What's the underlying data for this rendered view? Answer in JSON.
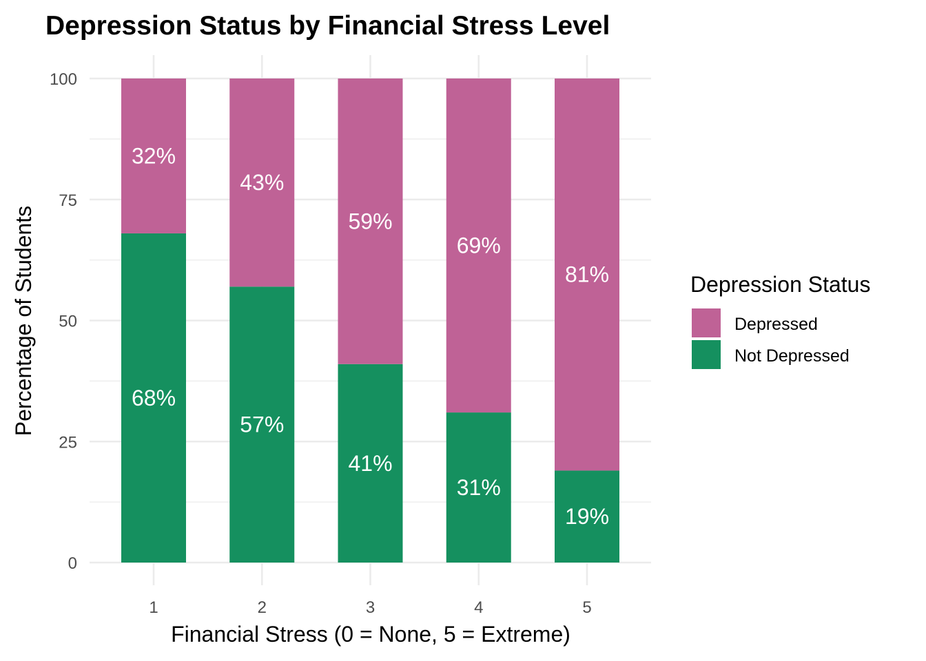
{
  "chart_data": {
    "type": "bar",
    "stacked": true,
    "title": "Depression Status by Financial Stress Level",
    "xlabel": "Financial Stress (0 = None, 5 = Extreme)",
    "ylabel": "Percentage of Students",
    "categories": [
      "1",
      "2",
      "3",
      "4",
      "5"
    ],
    "ylim": [
      0,
      100
    ],
    "yticks": [
      0,
      25,
      50,
      75,
      100
    ],
    "grid": true,
    "legend": {
      "title": "Depression Status",
      "position": "right"
    },
    "series": [
      {
        "name": "Not Depressed",
        "color": "#15905F",
        "values": [
          68,
          57,
          41,
          31,
          19
        ],
        "labels": [
          "68%",
          "57%",
          "41%",
          "31%",
          "19%"
        ]
      },
      {
        "name": "Depressed",
        "color": "#BF6296",
        "values": [
          32,
          43,
          59,
          69,
          81
        ],
        "labels": [
          "32%",
          "43%",
          "59%",
          "69%",
          "81%"
        ]
      }
    ],
    "legend_order": [
      "Depressed",
      "Not Depressed"
    ]
  }
}
